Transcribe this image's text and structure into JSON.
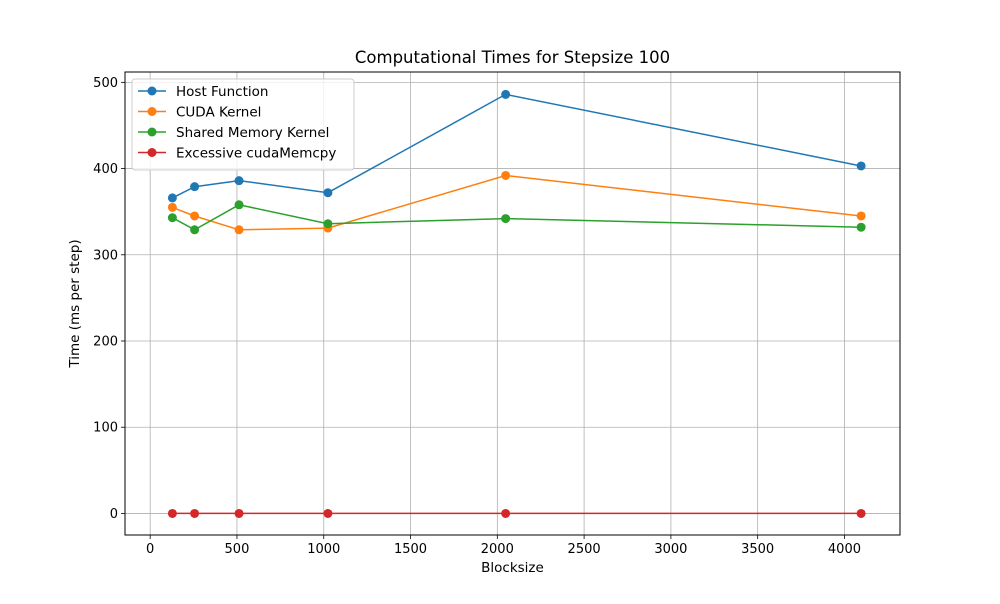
{
  "chart_data": {
    "type": "line",
    "title": "Computational Times for Stepsize 100",
    "xlabel": "Blocksize",
    "ylabel": "Time (ms per step)",
    "x": [
      128,
      256,
      512,
      1024,
      2048,
      4096
    ],
    "xlim": [
      -145,
      4320
    ],
    "ylim": [
      -25,
      512
    ],
    "xticks": [
      0,
      500,
      1000,
      1500,
      2000,
      2500,
      3000,
      3500,
      4000
    ],
    "yticks": [
      0,
      100,
      200,
      300,
      400,
      500
    ],
    "grid": true,
    "legend_position": "upper-left",
    "marker": "circle",
    "series": [
      {
        "name": "Host Function",
        "color": "#1f77b4",
        "values": [
          366,
          379,
          386,
          372,
          486,
          403
        ]
      },
      {
        "name": "CUDA Kernel",
        "color": "#ff7f0e",
        "values": [
          355,
          345,
          329,
          331,
          392,
          345
        ]
      },
      {
        "name": "Shared Memory Kernel",
        "color": "#2ca02c",
        "values": [
          343,
          329,
          358,
          336,
          342,
          332
        ]
      },
      {
        "name": "Excessive cudaMemcpy",
        "color": "#d62728",
        "values": [
          0,
          0,
          0,
          0,
          0,
          0
        ]
      }
    ]
  }
}
